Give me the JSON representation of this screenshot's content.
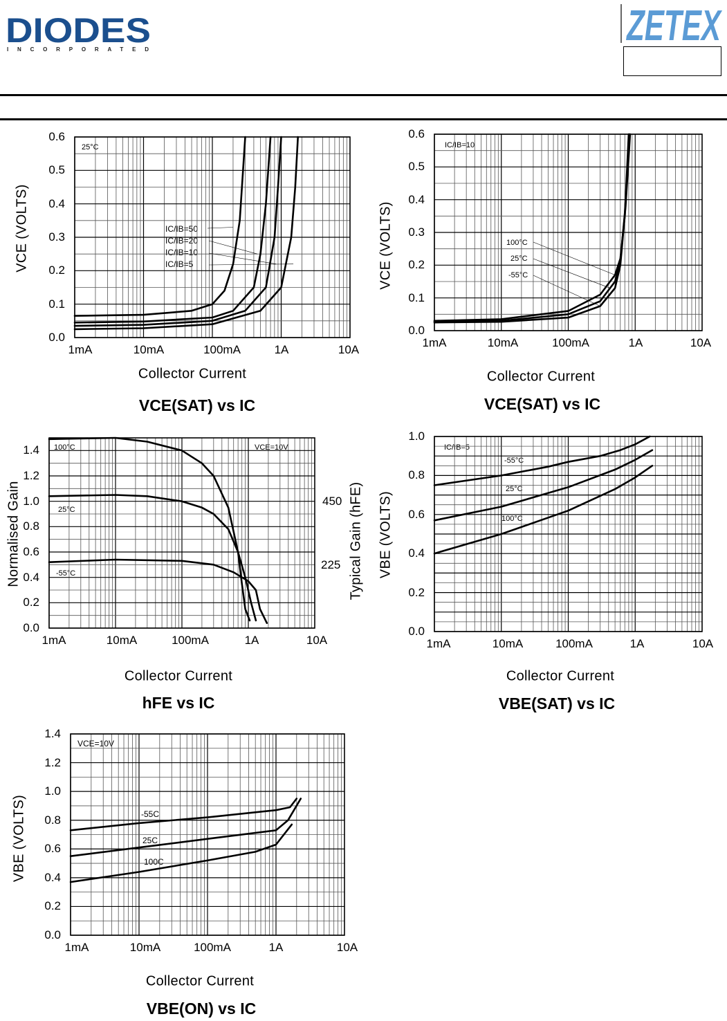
{
  "header": {
    "left_logo_text": "DIODES",
    "left_logo_subtext": "INCORPORATED",
    "right_logo_text": "ZETEX",
    "brand_colors": {
      "diodes": "#1b4f8e",
      "zetex": "#5b9bd5"
    }
  },
  "chart_data": [
    {
      "type": "line",
      "title": "VCE(SAT) vs IC",
      "xlabel": "Collector Current",
      "ylabel": "VCE  (VOLTS)",
      "xscale": "log",
      "xlim": [
        0.001,
        10
      ],
      "ylim": [
        0,
        0.6
      ],
      "x_tick_labels": [
        "1mA",
        "10mA",
        "100mA",
        "1A",
        "10A"
      ],
      "y_tick_labels": [
        "0.0",
        "0.1",
        "0.2",
        "0.3",
        "0.4",
        "0.5",
        "0.6"
      ],
      "grid": true,
      "annotations": [
        "25°C",
        "IC/IB=50",
        "IC/IB=20",
        "IC/IB=10",
        "IC/IB=5"
      ],
      "series": [
        {
          "name": "IC/IB=50",
          "x": [
            0.001,
            0.01,
            0.05,
            0.1,
            0.15,
            0.2,
            0.25,
            0.3
          ],
          "y": [
            0.065,
            0.068,
            0.08,
            0.1,
            0.14,
            0.22,
            0.35,
            0.6
          ]
        },
        {
          "name": "IC/IB=20",
          "x": [
            0.001,
            0.01,
            0.1,
            0.2,
            0.4,
            0.5,
            0.6,
            0.7
          ],
          "y": [
            0.045,
            0.048,
            0.06,
            0.08,
            0.15,
            0.25,
            0.4,
            0.6
          ]
        },
        {
          "name": "IC/IB=10",
          "x": [
            0.001,
            0.01,
            0.1,
            0.3,
            0.6,
            0.8,
            0.9,
            1.0
          ],
          "y": [
            0.035,
            0.038,
            0.05,
            0.08,
            0.15,
            0.3,
            0.45,
            0.6
          ]
        },
        {
          "name": "IC/IB=5",
          "x": [
            0.001,
            0.01,
            0.1,
            0.5,
            1.0,
            1.4,
            1.6,
            1.75
          ],
          "y": [
            0.025,
            0.028,
            0.04,
            0.08,
            0.15,
            0.3,
            0.45,
            0.6
          ]
        }
      ]
    },
    {
      "type": "line",
      "title": "VCE(SAT) vs IC",
      "xlabel": "Collector Current",
      "ylabel": "VCE  (VOLTS)",
      "xscale": "log",
      "xlim": [
        0.001,
        10
      ],
      "ylim": [
        0,
        0.6
      ],
      "x_tick_labels": [
        "1mA",
        "10mA",
        "100mA",
        "1A",
        "10A"
      ],
      "y_tick_labels": [
        "0.0",
        "0.1",
        "0.2",
        "0.3",
        "0.4",
        "0.5",
        "0.6"
      ],
      "grid": true,
      "annotations": [
        "IC/IB=10",
        "100°C",
        "25°C",
        "-55°C"
      ],
      "series": [
        {
          "name": "100°C",
          "x": [
            0.001,
            0.01,
            0.1,
            0.3,
            0.5,
            0.6,
            0.7,
            0.8
          ],
          "y": [
            0.03,
            0.035,
            0.06,
            0.11,
            0.17,
            0.22,
            0.35,
            0.6
          ]
        },
        {
          "name": "25°C",
          "x": [
            0.001,
            0.01,
            0.1,
            0.3,
            0.5,
            0.6,
            0.7,
            0.82
          ],
          "y": [
            0.028,
            0.03,
            0.05,
            0.09,
            0.15,
            0.21,
            0.36,
            0.6
          ]
        },
        {
          "name": "-55°C",
          "x": [
            0.001,
            0.01,
            0.1,
            0.3,
            0.5,
            0.6,
            0.72,
            0.84
          ],
          "y": [
            0.025,
            0.027,
            0.04,
            0.075,
            0.13,
            0.2,
            0.38,
            0.6
          ]
        }
      ]
    },
    {
      "type": "line",
      "title": "hFE vs IC",
      "xlabel": "Collector Current",
      "ylabel": "Normalised Gain",
      "ylabel_right": "Typical Gain  (hFE)",
      "xscale": "log",
      "xlim": [
        0.001,
        10
      ],
      "ylim": [
        0,
        1.5
      ],
      "x_tick_labels": [
        "1mA",
        "10mA",
        "100mA",
        "1A",
        "10A"
      ],
      "y_tick_labels": [
        "0.0",
        "0.2",
        "0.4",
        "0.6",
        "0.8",
        "1.0",
        "1.2",
        "1.4"
      ],
      "y_right_tick_labels": [
        "450",
        "225"
      ],
      "grid": true,
      "annotations": [
        "100°C",
        "VCE=10V",
        "25°C",
        "-55°C"
      ],
      "series": [
        {
          "name": "100°C",
          "x": [
            0.001,
            0.01,
            0.03,
            0.1,
            0.2,
            0.3,
            0.5,
            0.7,
            0.8,
            0.9,
            1.05
          ],
          "y": [
            1.49,
            1.5,
            1.47,
            1.4,
            1.3,
            1.2,
            0.95,
            0.6,
            0.35,
            0.15,
            0.06
          ]
        },
        {
          "name": "25°C",
          "x": [
            0.001,
            0.01,
            0.03,
            0.1,
            0.2,
            0.3,
            0.5,
            0.7,
            0.9,
            1.1,
            1.3
          ],
          "y": [
            1.04,
            1.05,
            1.04,
            1.0,
            0.95,
            0.9,
            0.78,
            0.6,
            0.4,
            0.2,
            0.06
          ]
        },
        {
          "name": "-55°C",
          "x": [
            0.001,
            0.01,
            0.1,
            0.3,
            0.6,
            1.0,
            1.3,
            1.5,
            1.9
          ],
          "y": [
            0.52,
            0.54,
            0.53,
            0.5,
            0.44,
            0.37,
            0.3,
            0.15,
            0.04
          ]
        }
      ]
    },
    {
      "type": "line",
      "title": "VBE(SAT) vs IC",
      "xlabel": "Collector Current",
      "ylabel": "VBE  (VOLTS)",
      "xscale": "log",
      "xlim": [
        0.001,
        10
      ],
      "ylim": [
        0,
        1.0
      ],
      "x_tick_labels": [
        "1mA",
        "10mA",
        "100mA",
        "1A",
        "10A"
      ],
      "y_tick_labels": [
        "0.0",
        "0.2",
        "0.4",
        "0.6",
        "0.8",
        "1.0"
      ],
      "grid": true,
      "annotations": [
        "IC/IB=5",
        "-55°C",
        "25°C",
        "100°C"
      ],
      "series": [
        {
          "name": "-55°C",
          "x": [
            0.001,
            0.01,
            0.05,
            0.1,
            0.3,
            0.6,
            1.0,
            1.65
          ],
          "y": [
            0.75,
            0.8,
            0.845,
            0.87,
            0.9,
            0.93,
            0.96,
            1.0
          ]
        },
        {
          "name": "25°C",
          "x": [
            0.001,
            0.01,
            0.1,
            0.5,
            1.0,
            1.8
          ],
          "y": [
            0.57,
            0.64,
            0.74,
            0.83,
            0.88,
            0.93
          ]
        },
        {
          "name": "100°C",
          "x": [
            0.001,
            0.01,
            0.1,
            0.5,
            1.0,
            1.8
          ],
          "y": [
            0.4,
            0.5,
            0.62,
            0.73,
            0.79,
            0.85
          ]
        }
      ]
    },
    {
      "type": "line",
      "title": "VBE(ON) vs IC",
      "xlabel": "Collector Current",
      "ylabel": "VBE  (VOLTS)",
      "xscale": "log",
      "xlim": [
        0.001,
        10
      ],
      "ylim": [
        0,
        1.4
      ],
      "x_tick_labels": [
        "1mA",
        "10mA",
        "100mA",
        "1A",
        "10A"
      ],
      "y_tick_labels": [
        "0.0",
        "0.2",
        "0.4",
        "0.6",
        "0.8",
        "1.0",
        "1.2",
        "1.4"
      ],
      "grid": true,
      "annotations": [
        "VCE=10V",
        "-55C",
        "25C",
        "100C"
      ],
      "series": [
        {
          "name": "-55C",
          "x": [
            0.001,
            0.01,
            0.1,
            1.0,
            1.6,
            2.0
          ],
          "y": [
            0.73,
            0.78,
            0.82,
            0.87,
            0.89,
            0.95
          ]
        },
        {
          "name": "25C",
          "x": [
            0.001,
            0.01,
            0.1,
            1.0,
            1.5,
            2.3
          ],
          "y": [
            0.55,
            0.61,
            0.67,
            0.73,
            0.8,
            0.95
          ]
        },
        {
          "name": "100C",
          "x": [
            0.001,
            0.01,
            0.1,
            0.5,
            1.0,
            1.7
          ],
          "y": [
            0.37,
            0.44,
            0.52,
            0.58,
            0.63,
            0.77
          ]
        }
      ]
    }
  ]
}
